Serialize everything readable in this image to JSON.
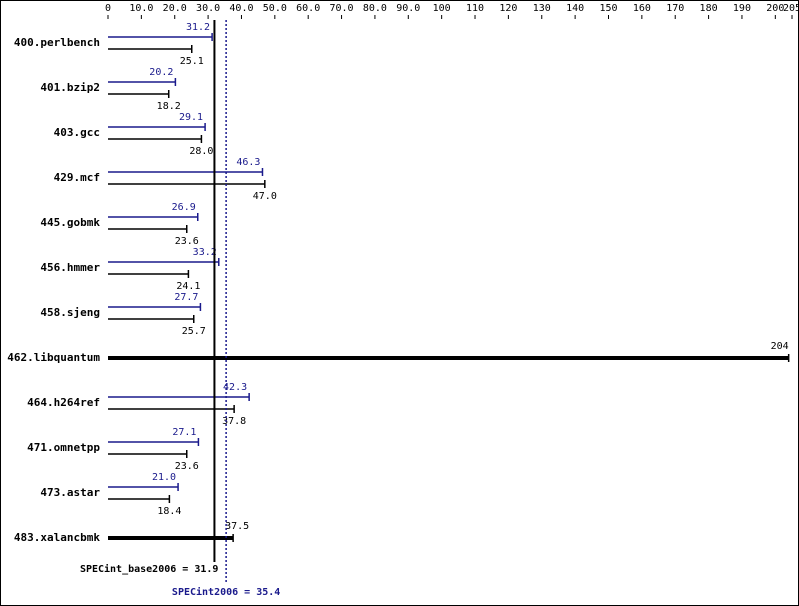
{
  "chart_data": {
    "type": "bar",
    "categories": [
      "400.perlbench",
      "401.bzip2",
      "403.gcc",
      "429.mcf",
      "445.gobmk",
      "456.hmmer",
      "458.sjeng",
      "462.libquantum",
      "464.h264ref",
      "471.omnetpp",
      "473.astar",
      "483.xalancbmk"
    ],
    "series": [
      {
        "color": "#1a1a8c",
        "values": [
          31.2,
          20.2,
          29.1,
          46.3,
          26.9,
          33.2,
          27.7,
          null,
          42.3,
          27.1,
          21.0,
          null
        ],
        "value_labels": [
          "31.2",
          "20.2",
          "29.1",
          "46.3",
          "26.9",
          "33.2",
          "27.7",
          null,
          "42.3",
          "27.1",
          "21.0",
          null
        ]
      },
      {
        "color": "#000000",
        "values": [
          25.1,
          18.2,
          28.0,
          47.0,
          23.6,
          24.1,
          25.7,
          204,
          37.8,
          23.6,
          18.4,
          37.5
        ],
        "value_labels": [
          "25.1",
          "18.2",
          "28.0",
          "47.0",
          "23.6",
          "24.1",
          "25.7",
          "204",
          "37.8",
          "23.6",
          "18.4",
          "37.5"
        ]
      }
    ],
    "xlim": [
      0,
      205
    ],
    "xticks": [
      0,
      {
        "value": 10,
        "label": "10.0"
      },
      {
        "value": 20,
        "label": "20.0"
      },
      {
        "value": 30,
        "label": "30.0"
      },
      {
        "value": 40,
        "label": "40.0"
      },
      {
        "value": 50,
        "label": "50.0"
      },
      {
        "value": 60,
        "label": "60.0"
      },
      {
        "value": 70,
        "label": "70.0"
      },
      {
        "value": 80,
        "label": "80.0"
      },
      {
        "value": 90,
        "label": "90.0"
      },
      100,
      110,
      120,
      130,
      140,
      150,
      160,
      170,
      180,
      190,
      200,
      205
    ],
    "reference_lines": [
      {
        "label": "SPECint_base2006 = 31.9",
        "value": 31.9,
        "color": "#000000",
        "dash": false
      },
      {
        "label": "SPECint2006 = 35.4",
        "value": 35.4,
        "color": "#1a1a8c",
        "dash": true
      }
    ]
  }
}
